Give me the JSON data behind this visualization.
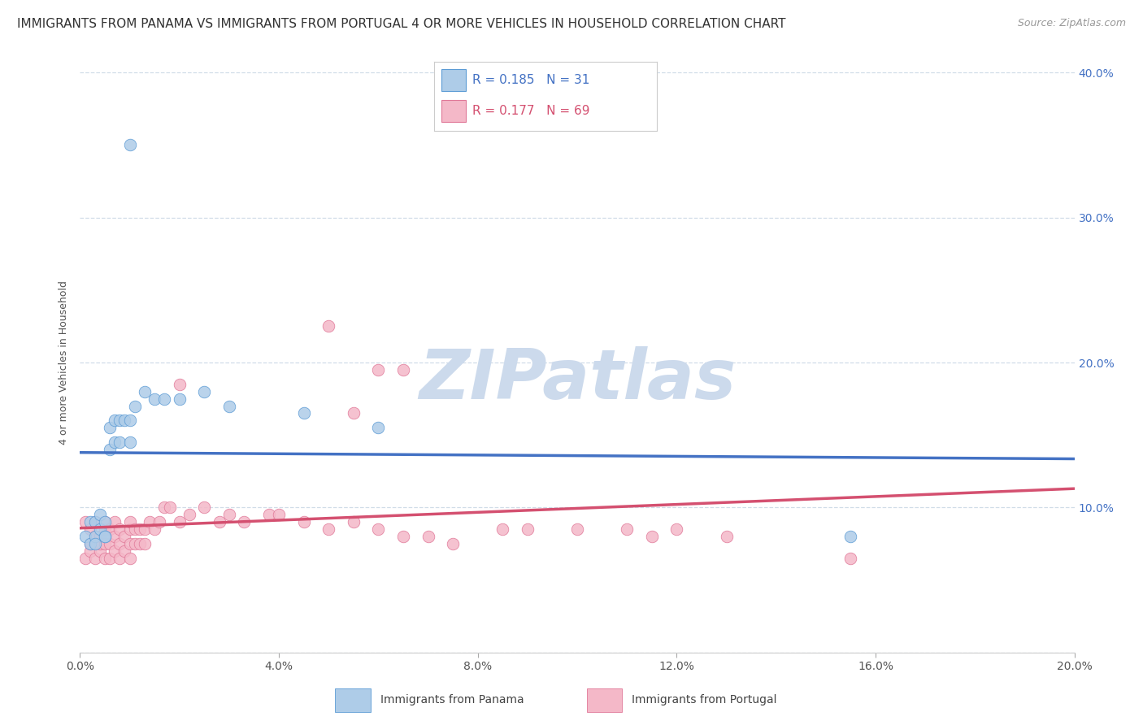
{
  "title": "IMMIGRANTS FROM PANAMA VS IMMIGRANTS FROM PORTUGAL 4 OR MORE VEHICLES IN HOUSEHOLD CORRELATION CHART",
  "source": "Source: ZipAtlas.com",
  "ylabel": "4 or more Vehicles in Household",
  "xlim": [
    0.0,
    0.2
  ],
  "ylim": [
    0.0,
    0.4
  ],
  "xticks": [
    0.0,
    0.04,
    0.08,
    0.12,
    0.16,
    0.2
  ],
  "yticks": [
    0.0,
    0.1,
    0.2,
    0.3,
    0.4
  ],
  "xtick_labels": [
    "0.0%",
    "4.0%",
    "8.0%",
    "12.0%",
    "16.0%",
    "20.0%"
  ],
  "ytick_labels": [
    "",
    "10.0%",
    "20.0%",
    "30.0%",
    "40.0%"
  ],
  "series1_name": "Immigrants from Panama",
  "series1_color": "#aecce8",
  "series1_edge_color": "#5b9bd5",
  "series1_line_color": "#4472c4",
  "series1_R": 0.185,
  "series1_N": 31,
  "series2_name": "Immigrants from Portugal",
  "series2_color": "#f4b8c8",
  "series2_edge_color": "#e07898",
  "series2_line_color": "#d45070",
  "series2_R": 0.177,
  "series2_N": 69,
  "panama_x": [
    0.001,
    0.002,
    0.002,
    0.003,
    0.003,
    0.003,
    0.004,
    0.004,
    0.005,
    0.005,
    0.005,
    0.006,
    0.006,
    0.007,
    0.007,
    0.008,
    0.008,
    0.009,
    0.01,
    0.01,
    0.011,
    0.013,
    0.015,
    0.017,
    0.02,
    0.025,
    0.03,
    0.045,
    0.06,
    0.155,
    0.01
  ],
  "panama_y": [
    0.08,
    0.075,
    0.09,
    0.08,
    0.09,
    0.075,
    0.085,
    0.095,
    0.08,
    0.09,
    0.08,
    0.14,
    0.155,
    0.145,
    0.16,
    0.16,
    0.145,
    0.16,
    0.145,
    0.16,
    0.17,
    0.18,
    0.175,
    0.175,
    0.175,
    0.18,
    0.17,
    0.165,
    0.155,
    0.08,
    0.35
  ],
  "portugal_x": [
    0.001,
    0.001,
    0.002,
    0.002,
    0.002,
    0.003,
    0.003,
    0.003,
    0.004,
    0.004,
    0.004,
    0.005,
    0.005,
    0.005,
    0.005,
    0.006,
    0.006,
    0.006,
    0.007,
    0.007,
    0.007,
    0.008,
    0.008,
    0.008,
    0.009,
    0.009,
    0.01,
    0.01,
    0.01,
    0.01,
    0.011,
    0.011,
    0.012,
    0.012,
    0.013,
    0.013,
    0.014,
    0.015,
    0.016,
    0.017,
    0.018,
    0.02,
    0.02,
    0.022,
    0.025,
    0.028,
    0.03,
    0.033,
    0.038,
    0.04,
    0.045,
    0.05,
    0.055,
    0.06,
    0.065,
    0.07,
    0.075,
    0.085,
    0.09,
    0.1,
    0.11,
    0.115,
    0.12,
    0.13,
    0.055,
    0.06,
    0.065,
    0.155,
    0.05
  ],
  "portugal_y": [
    0.065,
    0.09,
    0.07,
    0.085,
    0.075,
    0.065,
    0.08,
    0.09,
    0.07,
    0.08,
    0.075,
    0.065,
    0.075,
    0.085,
    0.09,
    0.065,
    0.075,
    0.085,
    0.07,
    0.08,
    0.09,
    0.065,
    0.075,
    0.085,
    0.07,
    0.08,
    0.065,
    0.075,
    0.085,
    0.09,
    0.075,
    0.085,
    0.075,
    0.085,
    0.075,
    0.085,
    0.09,
    0.085,
    0.09,
    0.1,
    0.1,
    0.09,
    0.185,
    0.095,
    0.1,
    0.09,
    0.095,
    0.09,
    0.095,
    0.095,
    0.09,
    0.085,
    0.09,
    0.085,
    0.08,
    0.08,
    0.075,
    0.085,
    0.085,
    0.085,
    0.085,
    0.08,
    0.085,
    0.08,
    0.165,
    0.195,
    0.195,
    0.065,
    0.225
  ],
  "watermark_text": "ZIPatlas",
  "watermark_color": "#ccdaec",
  "background_color": "#ffffff",
  "grid_color": "#d0dce8",
  "title_fontsize": 11,
  "axis_label_fontsize": 9,
  "tick_fontsize": 10,
  "right_tick_color": "#4472c4",
  "source_fontsize": 9
}
